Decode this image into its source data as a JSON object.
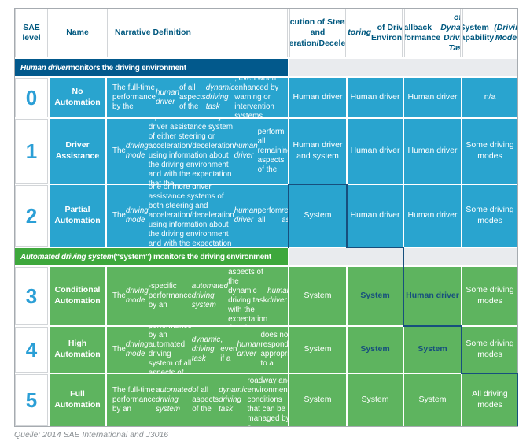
{
  "colors": {
    "blue_cell": "#29a4cf",
    "blue_band": "#02598c",
    "green_cell": "#5eb45f",
    "green_band": "#3ea83c",
    "gray_band": "#e9ebee",
    "navy": "#174f7d",
    "header_text": "#00587f",
    "level_number": "#2b9fd6",
    "source_text": "#8b9094",
    "table_border": "#a6abb0",
    "white_cell_border": "#d2d5d8"
  },
  "header": {
    "cols": [
      {
        "label": "SAE level"
      },
      {
        "label": "Name"
      },
      {
        "label": "Narrative Definition"
      },
      {
        "label": "Execution of Steering and Acceleration/Deceleration"
      },
      {
        "label": [
          {
            "t": "Monitoring",
            "i": true
          },
          {
            "t": " of Driving Environment"
          }
        ]
      },
      {
        "label": [
          {
            "t": "Fallback Performance "
          },
          {
            "t": "of Dynamic Driving Task",
            "i": true
          }
        ]
      },
      {
        "label": [
          {
            "t": "System Capability "
          },
          {
            "t": "(Driving Modes)",
            "i": true
          }
        ]
      }
    ]
  },
  "bands": {
    "human": [
      {
        "t": "Human driver",
        "i": true
      },
      {
        "t": " monitors the driving environment"
      }
    ],
    "automated": [
      {
        "t": "Automated driving system",
        "i": true
      },
      {
        "t": " (“system”) monitors the driving environment"
      }
    ]
  },
  "rows": [
    {
      "level": "0",
      "name": "No Automation",
      "narrative": [
        {
          "t": "The full-time performance by the "
        },
        {
          "t": "human driver",
          "i": true
        },
        {
          "t": " of all aspects of the "
        },
        {
          "t": "dynamic driving task",
          "i": true
        },
        {
          "t": ", even when enhanced by warning or intervention systems."
        }
      ],
      "cells": [
        [
          {
            "t": "Human driver"
          }
        ],
        [
          {
            "t": "Human driver"
          }
        ],
        [
          {
            "t": "Human driver"
          }
        ],
        [
          {
            "t": "n/a"
          }
        ]
      ]
    },
    {
      "level": "1",
      "name": "Driver Assistance",
      "narrative": [
        {
          "t": "The "
        },
        {
          "t": "driving mode",
          "i": true
        },
        {
          "t": "-specific execution by a driver assistance system of either steering or acceleration/deceleration using information about the driving environment and with the expectation that the "
        },
        {
          "t": "human driver",
          "i": true
        },
        {
          "t": " perform all remaining aspects of the "
        },
        {
          "t": "dynamic driving task",
          "i": true
        },
        {
          "t": "."
        }
      ],
      "cells": [
        [
          {
            "t": "Human driver and system"
          }
        ],
        [
          {
            "t": "Human driver"
          }
        ],
        [
          {
            "t": "Human driver"
          }
        ],
        [
          {
            "t": "Some driving modes"
          }
        ]
      ]
    },
    {
      "level": "2",
      "name": "Partial Automation",
      "narrative": [
        {
          "t": "The "
        },
        {
          "t": "driving mode",
          "i": true
        },
        {
          "t": "-specific execution by one or more driver assistance systems of both steering and acceleration/deceleration using information about the driving environment and with the expectation that the "
        },
        {
          "t": "human driver",
          "i": true
        },
        {
          "t": " perfom all "
        },
        {
          "t": "remaining aspects",
          "i": true
        },
        {
          "t": " of the "
        },
        {
          "t": "dynamic driving task",
          "i": true
        },
        {
          "t": "."
        }
      ],
      "cells": [
        [
          {
            "t": "System"
          }
        ],
        [
          {
            "t": "Human driver"
          }
        ],
        [
          {
            "t": "Human driver"
          }
        ],
        [
          {
            "t": "Some driving modes"
          }
        ]
      ]
    },
    {
      "level": "3",
      "name": "Conditional Automation",
      "narrative": [
        {
          "t": "The "
        },
        {
          "t": "driving mode",
          "i": true
        },
        {
          "t": "-specific performance by an "
        },
        {
          "t": "automated driving system",
          "i": true
        },
        {
          "t": " of all aspects of the dynamic driving task with the expectation that the "
        },
        {
          "t": "human driver",
          "i": true
        },
        {
          "t": " will respond apppropriately to a "
        },
        {
          "t": "request to intervene",
          "i": true
        },
        {
          "t": "."
        }
      ],
      "cells": [
        [
          {
            "t": "System"
          }
        ],
        [
          {
            "t": "System",
            "c": "navy"
          }
        ],
        [
          {
            "t": "Human driver",
            "c": "navy"
          }
        ],
        [
          {
            "t": "Some driving modes"
          }
        ]
      ]
    },
    {
      "level": "4",
      "name": "High Automation",
      "narrative": [
        {
          "t": "The "
        },
        {
          "t": "driving mode",
          "i": true
        },
        {
          "t": "-specific performance by an automated driving system of all aspects of the "
        },
        {
          "t": "dynamic driving task",
          "i": true
        },
        {
          "t": ", even if a "
        },
        {
          "t": "human driver",
          "i": true
        },
        {
          "t": " does not respond appropriately to a "
        },
        {
          "t": "request to intervene",
          "i": true
        },
        {
          "t": "."
        }
      ],
      "cells": [
        [
          {
            "t": "System"
          }
        ],
        [
          {
            "t": "System",
            "c": "navy"
          }
        ],
        [
          {
            "t": "System",
            "c": "navy"
          }
        ],
        [
          {
            "t": "Some driving modes"
          }
        ]
      ]
    },
    {
      "level": "5",
      "name": "Full Automation",
      "narrative": [
        {
          "t": "The full-time performance by an "
        },
        {
          "t": "automated driving system",
          "i": true
        },
        {
          "t": " of all aspects of the "
        },
        {
          "t": "dynamic driving task",
          "i": true
        },
        {
          "t": " under all roadway and environmental conditions that can be managed by a "
        },
        {
          "t": "human driver",
          "i": true
        },
        {
          "t": "."
        }
      ],
      "cells": [
        [
          {
            "t": "System"
          }
        ],
        [
          {
            "t": "System"
          }
        ],
        [
          {
            "t": "System"
          }
        ],
        [
          {
            "t": "All driving modes"
          }
        ]
      ]
    }
  ],
  "footer": {
    "source": "Quelle: 2014 SAE International and J3016"
  }
}
